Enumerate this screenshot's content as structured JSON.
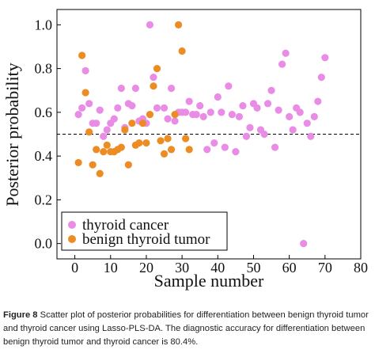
{
  "chart_data": {
    "type": "scatter",
    "xlabel": "Sample number",
    "ylabel": "Posterior probability",
    "xlim": [
      -5,
      80
    ],
    "ylim": [
      -0.07,
      1.07
    ],
    "xticks": [
      "0",
      "10",
      "20",
      "30",
      "40",
      "50",
      "60",
      "70",
      "80"
    ],
    "yticks": [
      "0.0",
      "0.2",
      "0.4",
      "0.6",
      "0.8",
      "1.0"
    ],
    "threshold": 0.5,
    "legend_position": "bottom-left",
    "series": [
      {
        "name": "thyroid cancer",
        "color": "#e98ce6",
        "points": [
          [
            1,
            0.59
          ],
          [
            2,
            0.62
          ],
          [
            3,
            0.79
          ],
          [
            4,
            0.64
          ],
          [
            5,
            0.55
          ],
          [
            6,
            0.55
          ],
          [
            7,
            0.61
          ],
          [
            8,
            0.49
          ],
          [
            9,
            0.52
          ],
          [
            10,
            0.55
          ],
          [
            11,
            0.57
          ],
          [
            12,
            0.62
          ],
          [
            13,
            0.71
          ],
          [
            14,
            0.53
          ],
          [
            15,
            0.64
          ],
          [
            16,
            0.63
          ],
          [
            17,
            0.71
          ],
          [
            18,
            0.56
          ],
          [
            19,
            0.57
          ],
          [
            20,
            0.55
          ],
          [
            21,
            1.0
          ],
          [
            22,
            0.76
          ],
          [
            23,
            0.62
          ],
          [
            25,
            0.62
          ],
          [
            26,
            0.57
          ],
          [
            27,
            0.71
          ],
          [
            28,
            0.56
          ],
          [
            29,
            0.6
          ],
          [
            30,
            0.6
          ],
          [
            31,
            0.6
          ],
          [
            32,
            0.65
          ],
          [
            33,
            0.59
          ],
          [
            34,
            0.59
          ],
          [
            35,
            0.63
          ],
          [
            36,
            0.58
          ],
          [
            37,
            0.43
          ],
          [
            38,
            0.6
          ],
          [
            39,
            0.46
          ],
          [
            40,
            0.67
          ],
          [
            41,
            0.6
          ],
          [
            42,
            0.44
          ],
          [
            43,
            0.72
          ],
          [
            44,
            0.59
          ],
          [
            45,
            0.42
          ],
          [
            46,
            0.58
          ],
          [
            47,
            0.63
          ],
          [
            48,
            0.49
          ],
          [
            49,
            0.53
          ],
          [
            50,
            0.64
          ],
          [
            51,
            0.62
          ],
          [
            52,
            0.52
          ],
          [
            53,
            0.5
          ],
          [
            54,
            0.64
          ],
          [
            55,
            0.7
          ],
          [
            56,
            0.44
          ],
          [
            57,
            0.61
          ],
          [
            58,
            0.82
          ],
          [
            59,
            0.87
          ],
          [
            60,
            0.58
          ],
          [
            61,
            0.52
          ],
          [
            62,
            0.62
          ],
          [
            63,
            0.6
          ],
          [
            64,
            0.0
          ],
          [
            65,
            0.55
          ],
          [
            66,
            0.49
          ],
          [
            67,
            0.58
          ],
          [
            68,
            0.65
          ],
          [
            69,
            0.76
          ],
          [
            70,
            0.85
          ]
        ]
      },
      {
        "name": "benign thyroid tumor",
        "color": "#ee8c24",
        "points": [
          [
            1,
            0.37
          ],
          [
            2,
            0.86
          ],
          [
            3,
            0.69
          ],
          [
            4,
            0.51
          ],
          [
            5,
            0.36
          ],
          [
            6,
            0.43
          ],
          [
            7,
            0.32
          ],
          [
            8,
            0.42
          ],
          [
            9,
            0.45
          ],
          [
            10,
            0.42
          ],
          [
            11,
            0.42
          ],
          [
            12,
            0.43
          ],
          [
            13,
            0.44
          ],
          [
            14,
            0.52
          ],
          [
            15,
            0.36
          ],
          [
            16,
            0.55
          ],
          [
            17,
            0.45
          ],
          [
            18,
            0.46
          ],
          [
            19,
            0.55
          ],
          [
            20,
            0.46
          ],
          [
            21,
            0.59
          ],
          [
            22,
            0.72
          ],
          [
            23,
            0.8
          ],
          [
            24,
            0.47
          ],
          [
            25,
            0.41
          ],
          [
            26,
            0.48
          ],
          [
            27,
            0.43
          ],
          [
            28,
            0.59
          ],
          [
            29,
            1.0
          ],
          [
            30,
            0.88
          ],
          [
            31,
            0.48
          ],
          [
            32,
            0.43
          ]
        ]
      }
    ]
  },
  "caption": {
    "label": "Figure 8",
    "text": "Scatter plot of posterior probabilities for differentiation between benign thyroid tumor and thyroid cancer using Lasso-PLS-DA. The diagnostic accuracy for differentiation between benign thyroid tumor and thyroid cancer is 80.4%."
  }
}
